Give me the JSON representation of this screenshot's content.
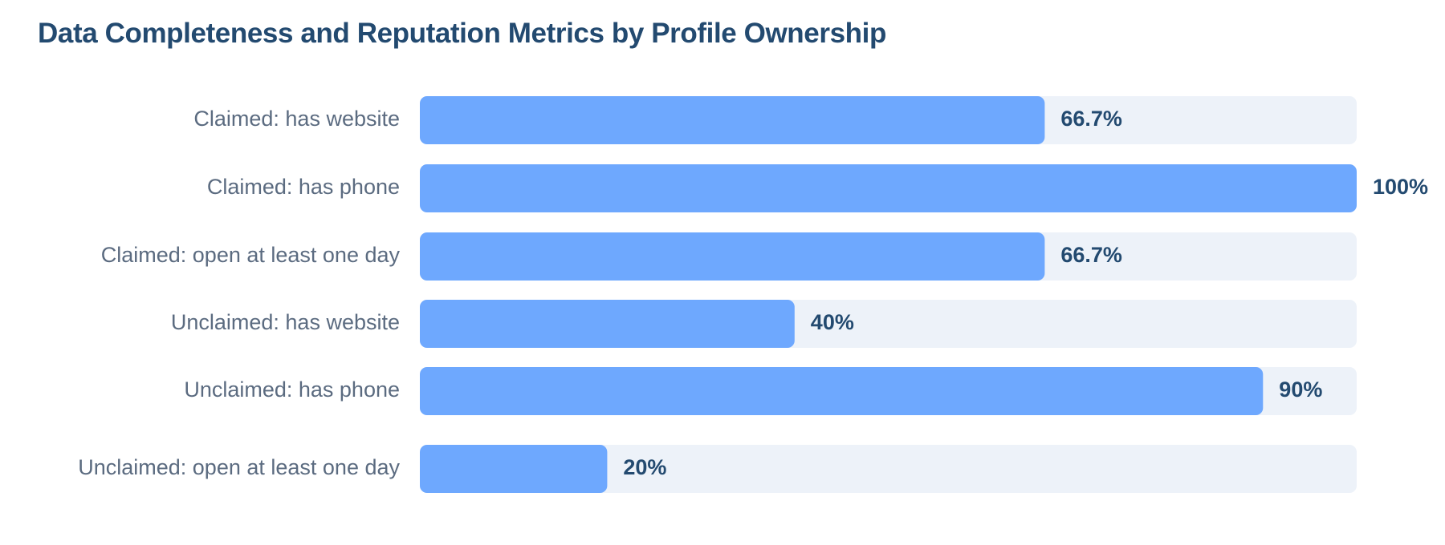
{
  "chart_data": {
    "type": "bar",
    "orientation": "horizontal",
    "title": "Data Completeness and Reputation Metrics by Profile Ownership",
    "categories": [
      "Claimed: has website",
      "Claimed: has phone",
      "Claimed: open at least one day",
      "Unclaimed: has website",
      "Unclaimed: has phone",
      "Unclaimed: open at least one day"
    ],
    "values": [
      66.7,
      100,
      66.7,
      40,
      90,
      20
    ],
    "value_labels": [
      "66.7%",
      "100%",
      "66.7%",
      "40%",
      "90%",
      "20%"
    ],
    "xlim": [
      0,
      100
    ],
    "grid": false,
    "colors": {
      "bar": "#6ea8fe",
      "track": "#edf2f9",
      "title": "#234a70",
      "category_text": "#5b6b80",
      "value_text": "#234a70"
    }
  }
}
